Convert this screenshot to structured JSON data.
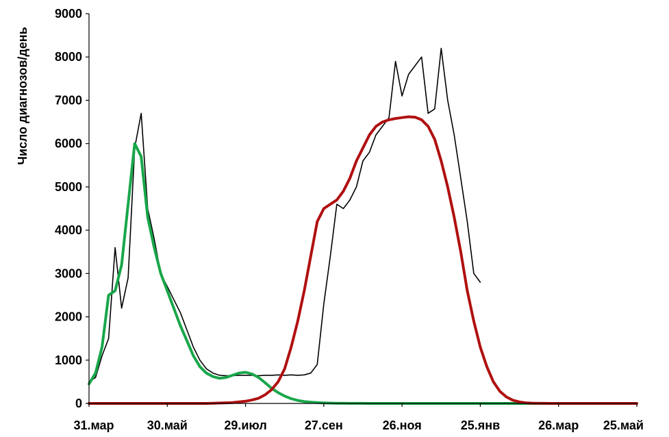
{
  "chart_data": {
    "type": "line",
    "title": "",
    "xlabel": "",
    "ylabel": "Число диагнозов/день",
    "ylim": [
      0,
      9000
    ],
    "yticks": [
      0,
      1000,
      2000,
      3000,
      4000,
      5000,
      6000,
      7000,
      8000,
      9000
    ],
    "xlim": [
      "31.мар",
      "25.май"
    ],
    "xticks": [
      "31.мар",
      "30.май",
      "29.июл",
      "27.сен",
      "26.ноя",
      "25.янв",
      "26.мар",
      "25.май"
    ],
    "grid": false,
    "legend": "none",
    "series": [
      {
        "color": "#000000",
        "style": "thin",
        "x": [
          "31.мар",
          "5.апр",
          "10.апр",
          "15.апр",
          "20.апр",
          "25.апр",
          "30.апр",
          "5.май",
          "10.май",
          "15.май",
          "20.май",
          "25.май",
          "30.май",
          "4.июн",
          "9.июн",
          "14.июн",
          "19.июн",
          "24.июн",
          "29.июн",
          "4.июл",
          "9.июл",
          "14.июл",
          "19.июл",
          "24.июл",
          "29.июл",
          "3.авг",
          "8.авг",
          "13.авг",
          "18.авг",
          "23.авг",
          "28.авг",
          "2.сен",
          "7.сен",
          "12.сен",
          "17.сен",
          "22.сен",
          "27.сен",
          "2.окт",
          "7.окт",
          "12.окт",
          "17.окт",
          "22.окт",
          "27.окт",
          "1.ноя",
          "6.ноя",
          "11.ноя",
          "16.ноя",
          "21.ноя",
          "26.ноя",
          "1.дек",
          "6.дек",
          "11.дек",
          "16.дек",
          "21.дек",
          "26.дек",
          "31.дек",
          "5.янв",
          "10.янв",
          "15.янв",
          "20.янв",
          "25.янв"
        ],
        "values": [
          500,
          600,
          1100,
          1500,
          3600,
          2200,
          2900,
          5900,
          6700,
          4500,
          3800,
          3000,
          2700,
          2400,
          2100,
          1700,
          1300,
          1000,
          800,
          700,
          650,
          640,
          640,
          650,
          650,
          650,
          640,
          650,
          650,
          660,
          650,
          660,
          650,
          660,
          700,
          900,
          2300,
          3400,
          4600,
          4500,
          4700,
          5000,
          5600,
          5800,
          6200,
          6400,
          6600,
          7900,
          7100,
          7600,
          7800,
          8000,
          6700,
          6800,
          8200,
          7000,
          6200,
          5200,
          4200,
          3000,
          2800
        ]
      },
      {
        "color": "#19a64a",
        "style": "thick",
        "x": [
          "31.мар",
          "5.апр",
          "10.апр",
          "15.апр",
          "20.апр",
          "25.апр",
          "30.апр",
          "5.май",
          "10.май",
          "15.май",
          "20.май",
          "25.май",
          "30.май",
          "4.июн",
          "9.июн",
          "14.июн",
          "19.июн",
          "24.июн",
          "29.июн",
          "4.июл",
          "9.июл",
          "14.июл",
          "19.июл",
          "24.июл",
          "29.июл",
          "3.авг",
          "8.авг",
          "13.авг",
          "18.авг",
          "23.авг",
          "28.авг",
          "2.сен",
          "7.сен",
          "12.сен",
          "17.сен",
          "22.сен",
          "27.сен",
          "2.окт",
          "7.окт",
          "12.окт",
          "17.окт",
          "22.окт",
          "27.окт",
          "1.ноя",
          "6.ноя",
          "11.ноя",
          "16.ноя",
          "21.ноя",
          "26.ноя",
          "1.дек",
          "6.дек",
          "11.дек",
          "16.дек",
          "21.дек",
          "26.дек",
          "31.дек",
          "5.янв",
          "10.янв",
          "15.янв",
          "20.янв",
          "25.янв",
          "30.янв",
          "4.фев",
          "9.фев",
          "14.фев",
          "19.фев",
          "24.фев",
          "1.мар",
          "6.мар",
          "11.мар",
          "16.мар",
          "21.мар",
          "26.мар",
          "31.мар",
          "5.апр",
          "10.апр",
          "15.апр",
          "20.апр",
          "25.апр",
          "30.апр",
          "5.май",
          "10.май",
          "15.май",
          "20.май",
          "25.май"
        ],
        "values": [
          450,
          700,
          1300,
          2500,
          2600,
          3200,
          4600,
          6000,
          5700,
          4300,
          3600,
          3000,
          2600,
          2200,
          1800,
          1450,
          1100,
          850,
          700,
          620,
          580,
          600,
          650,
          700,
          720,
          680,
          600,
          480,
          350,
          250,
          170,
          110,
          70,
          45,
          30,
          20,
          12,
          8,
          5,
          3,
          2,
          1,
          1,
          0,
          0,
          0,
          0,
          0,
          0,
          0,
          0,
          0,
          0,
          0,
          0,
          0,
          0,
          0,
          0,
          0,
          0,
          0,
          0,
          0,
          0,
          0,
          0,
          0,
          0,
          0,
          0,
          0,
          0,
          0,
          0,
          0,
          0,
          0,
          0,
          0,
          0,
          0,
          0,
          0,
          0
        ]
      },
      {
        "color": "#b01010",
        "style": "thick",
        "x": [
          "31.мар",
          "5.апр",
          "10.апр",
          "15.апр",
          "20.апр",
          "25.апр",
          "30.апр",
          "5.май",
          "10.май",
          "15.май",
          "20.май",
          "25.май",
          "30.май",
          "4.июн",
          "9.июн",
          "14.июн",
          "19.июн",
          "24.июн",
          "29.июн",
          "4.июл",
          "9.июл",
          "14.июл",
          "19.июл",
          "24.июл",
          "29.июл",
          "3.авг",
          "8.авг",
          "13.авг",
          "18.авг",
          "23.авг",
          "28.авг",
          "2.сен",
          "7.сен",
          "12.сен",
          "17.сен",
          "22.сен",
          "27.сен",
          "2.окт",
          "7.окт",
          "12.окт",
          "17.окт",
          "22.окт",
          "27.окт",
          "1.ноя",
          "6.ноя",
          "11.ноя",
          "16.ноя",
          "21.ноя",
          "26.ноя",
          "1.дек",
          "6.дек",
          "11.дек",
          "16.дек",
          "21.дек",
          "26.дек",
          "31.дек",
          "5.янв",
          "10.янв",
          "15.янв",
          "20.янв",
          "25.янв",
          "30.янв",
          "4.фев",
          "9.фев",
          "14.фев",
          "19.фев",
          "24.фев",
          "1.мар",
          "6.мар",
          "11.мар",
          "16.мар",
          "21.мар",
          "26.мар",
          "31.мар",
          "5.апр",
          "10.апр",
          "15.апр",
          "20.апр",
          "25.апр",
          "30.апр",
          "5.май",
          "10.май",
          "15.май",
          "20.май",
          "25.май"
        ],
        "values": [
          0,
          0,
          0,
          0,
          0,
          0,
          0,
          0,
          0,
          0,
          0,
          0,
          0,
          0,
          0,
          0,
          0,
          0,
          0,
          5,
          10,
          15,
          20,
          35,
          50,
          80,
          120,
          200,
          320,
          500,
          800,
          1300,
          1900,
          2600,
          3400,
          4200,
          4500,
          4600,
          4700,
          4900,
          5200,
          5600,
          5900,
          6200,
          6400,
          6500,
          6550,
          6580,
          6600,
          6620,
          6610,
          6550,
          6400,
          6100,
          5600,
          5000,
          4300,
          3500,
          2600,
          1900,
          1300,
          850,
          500,
          280,
          150,
          75,
          35,
          15,
          7,
          3,
          1,
          0,
          0,
          0,
          0,
          0,
          0,
          0,
          0,
          0,
          0,
          0,
          0,
          0,
          0
        ]
      }
    ]
  }
}
